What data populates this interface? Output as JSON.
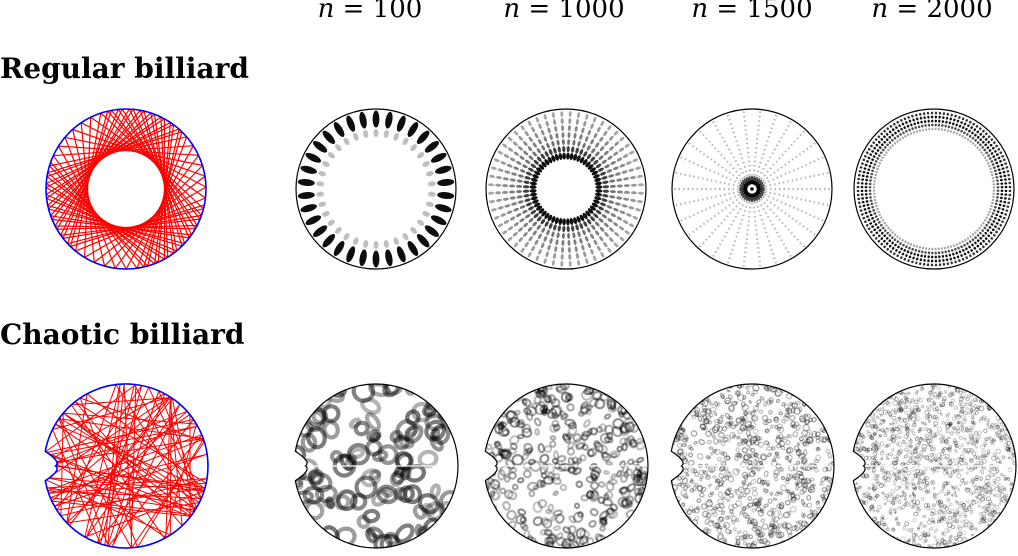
{
  "columns": [
    {
      "var": "n",
      "eq": " = ",
      "value": "100"
    },
    {
      "var": "n",
      "eq": " = ",
      "value": "1000"
    },
    {
      "var": "n",
      "eq": " = ",
      "value": "1500"
    },
    {
      "var": "n",
      "eq": " = ",
      "value": "2000"
    }
  ],
  "rows": [
    {
      "title": "Regular billiard",
      "billiard": "circular",
      "trajectory_color": "#ff0000",
      "boundary_color": "#0000ff"
    },
    {
      "title": "Chaotic billiard",
      "billiard": "cardioid",
      "trajectory_color": "#ff0000",
      "boundary_color": "#0000ff"
    }
  ],
  "colors": {
    "eigenstate_ink": "#000000",
    "background": "#ffffff",
    "outline": "#000000"
  }
}
